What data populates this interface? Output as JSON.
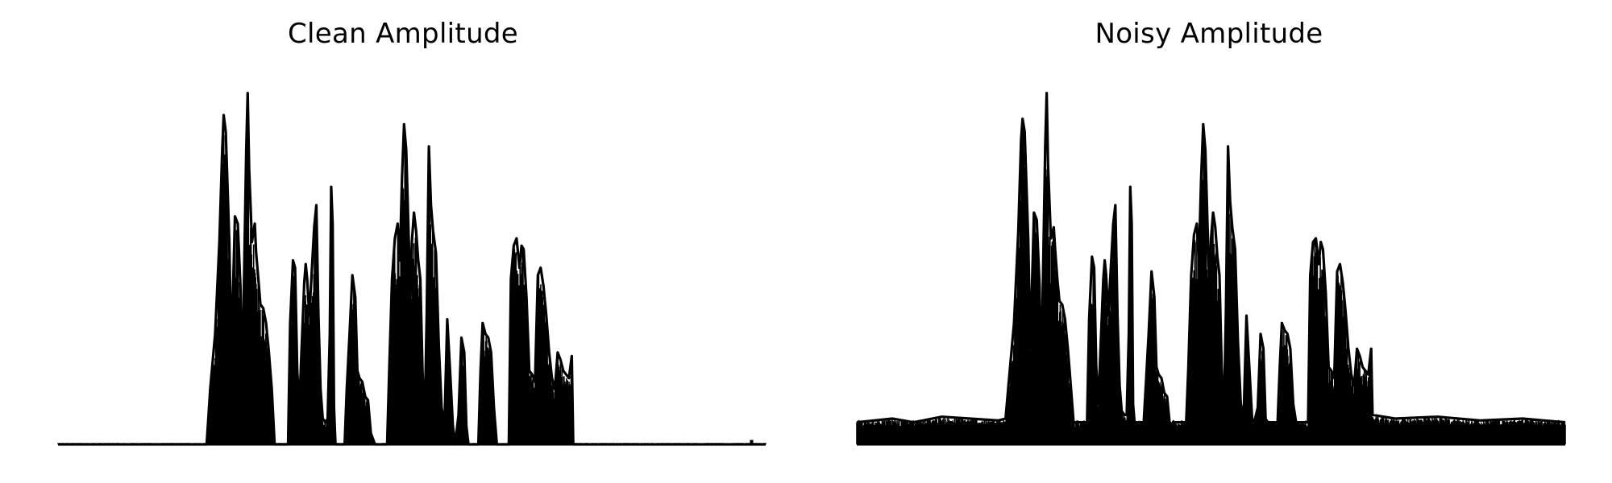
{
  "chart_data": [
    {
      "type": "area",
      "title": "Clean Amplitude",
      "xlabel": "",
      "ylabel": "",
      "axes_visible": false,
      "grid": false,
      "color": "#000000",
      "xlim": [
        0,
        1
      ],
      "ylim": [
        0,
        1
      ],
      "noise_floor": 0.0,
      "tail_blip_at": 0.98,
      "envelope": [
        [
          0.0,
          0.0
        ],
        [
          0.21,
          0.0
        ],
        [
          0.215,
          0.15
        ],
        [
          0.222,
          0.3
        ],
        [
          0.228,
          0.55
        ],
        [
          0.232,
          0.8
        ],
        [
          0.234,
          0.895
        ],
        [
          0.237,
          0.85
        ],
        [
          0.242,
          0.55
        ],
        [
          0.245,
          0.25
        ],
        [
          0.25,
          0.62
        ],
        [
          0.254,
          0.6
        ],
        [
          0.258,
          0.42
        ],
        [
          0.26,
          0.15
        ],
        [
          0.262,
          0.35
        ],
        [
          0.266,
          0.8
        ],
        [
          0.268,
          0.955
        ],
        [
          0.27,
          0.75
        ],
        [
          0.274,
          0.55
        ],
        [
          0.278,
          0.6
        ],
        [
          0.28,
          0.52
        ],
        [
          0.283,
          0.45
        ],
        [
          0.286,
          0.38
        ],
        [
          0.29,
          0.37
        ],
        [
          0.294,
          0.33
        ],
        [
          0.298,
          0.25
        ],
        [
          0.302,
          0.15
        ],
        [
          0.306,
          0.0
        ],
        [
          0.325,
          0.0
        ],
        [
          0.328,
          0.33
        ],
        [
          0.332,
          0.5
        ],
        [
          0.335,
          0.48
        ],
        [
          0.338,
          0.2
        ],
        [
          0.341,
          0.1
        ],
        [
          0.344,
          0.25
        ],
        [
          0.348,
          0.44
        ],
        [
          0.35,
          0.49
        ],
        [
          0.352,
          0.45
        ],
        [
          0.355,
          0.35
        ],
        [
          0.358,
          0.45
        ],
        [
          0.362,
          0.59
        ],
        [
          0.365,
          0.65
        ],
        [
          0.368,
          0.35
        ],
        [
          0.371,
          0.15
        ],
        [
          0.374,
          0.07
        ],
        [
          0.378,
          0.06
        ],
        [
          0.381,
          0.07
        ],
        [
          0.384,
          0.3
        ],
        [
          0.386,
          0.7
        ],
        [
          0.388,
          0.6
        ],
        [
          0.39,
          0.1
        ],
        [
          0.392,
          0.0
        ],
        [
          0.405,
          0.0
        ],
        [
          0.408,
          0.15
        ],
        [
          0.412,
          0.3
        ],
        [
          0.416,
          0.46
        ],
        [
          0.42,
          0.4
        ],
        [
          0.423,
          0.2
        ],
        [
          0.426,
          0.18
        ],
        [
          0.43,
          0.17
        ],
        [
          0.434,
          0.13
        ],
        [
          0.438,
          0.12
        ],
        [
          0.442,
          0.03
        ],
        [
          0.448,
          0.0
        ],
        [
          0.465,
          0.0
        ],
        [
          0.468,
          0.2
        ],
        [
          0.472,
          0.45
        ],
        [
          0.476,
          0.56
        ],
        [
          0.48,
          0.6
        ],
        [
          0.483,
          0.5
        ],
        [
          0.486,
          0.72
        ],
        [
          0.489,
          0.87
        ],
        [
          0.492,
          0.8
        ],
        [
          0.495,
          0.6
        ],
        [
          0.498,
          0.4
        ],
        [
          0.5,
          0.55
        ],
        [
          0.503,
          0.63
        ],
        [
          0.506,
          0.58
        ],
        [
          0.509,
          0.5
        ],
        [
          0.512,
          0.45
        ],
        [
          0.515,
          0.2
        ],
        [
          0.518,
          0.05
        ],
        [
          0.521,
          0.35
        ],
        [
          0.524,
          0.81
        ],
        [
          0.527,
          0.65
        ],
        [
          0.53,
          0.58
        ],
        [
          0.534,
          0.52
        ],
        [
          0.538,
          0.27
        ],
        [
          0.542,
          0.1
        ],
        [
          0.546,
          0.05
        ],
        [
          0.55,
          0.34
        ],
        [
          0.554,
          0.2
        ],
        [
          0.558,
          0.05
        ],
        [
          0.561,
          0.0
        ],
        [
          0.566,
          0.08
        ],
        [
          0.57,
          0.29
        ],
        [
          0.574,
          0.25
        ],
        [
          0.577,
          0.05
        ],
        [
          0.58,
          0.0
        ],
        [
          0.594,
          0.0
        ],
        [
          0.597,
          0.2
        ],
        [
          0.6,
          0.33
        ],
        [
          0.604,
          0.3
        ],
        [
          0.608,
          0.29
        ],
        [
          0.612,
          0.25
        ],
        [
          0.616,
          0.1
        ],
        [
          0.62,
          0.0
        ],
        [
          0.637,
          0.0
        ],
        [
          0.64,
          0.45
        ],
        [
          0.644,
          0.54
        ],
        [
          0.648,
          0.56
        ],
        [
          0.652,
          0.48
        ],
        [
          0.655,
          0.54
        ],
        [
          0.658,
          0.53
        ],
        [
          0.662,
          0.4
        ],
        [
          0.666,
          0.2
        ],
        [
          0.67,
          0.19
        ],
        [
          0.674,
          0.17
        ],
        [
          0.678,
          0.46
        ],
        [
          0.682,
          0.48
        ],
        [
          0.686,
          0.43
        ],
        [
          0.69,
          0.35
        ],
        [
          0.694,
          0.25
        ],
        [
          0.698,
          0.18
        ],
        [
          0.702,
          0.15
        ],
        [
          0.706,
          0.25
        ],
        [
          0.71,
          0.23
        ],
        [
          0.714,
          0.2
        ],
        [
          0.718,
          0.19
        ],
        [
          0.722,
          0.18
        ],
        [
          0.726,
          0.24
        ],
        [
          0.728,
          0.0
        ],
        [
          0.8,
          0.0
        ],
        [
          1.0,
          0.0
        ]
      ]
    },
    {
      "type": "area",
      "title": "Noisy Amplitude",
      "xlabel": "",
      "ylabel": "",
      "axes_visible": false,
      "grid": false,
      "color": "#000000",
      "xlim": [
        0,
        1
      ],
      "ylim": [
        0,
        1
      ],
      "noise_floor": 0.055,
      "envelope": [
        [
          0.0,
          0.06
        ],
        [
          0.05,
          0.07
        ],
        [
          0.08,
          0.06
        ],
        [
          0.12,
          0.075
        ],
        [
          0.16,
          0.07
        ],
        [
          0.2,
          0.065
        ],
        [
          0.21,
          0.07
        ],
        [
          0.215,
          0.18
        ],
        [
          0.222,
          0.33
        ],
        [
          0.228,
          0.58
        ],
        [
          0.232,
          0.83
        ],
        [
          0.234,
          0.885
        ],
        [
          0.237,
          0.85
        ],
        [
          0.242,
          0.56
        ],
        [
          0.245,
          0.26
        ],
        [
          0.25,
          0.63
        ],
        [
          0.254,
          0.61
        ],
        [
          0.258,
          0.43
        ],
        [
          0.26,
          0.16
        ],
        [
          0.262,
          0.36
        ],
        [
          0.266,
          0.81
        ],
        [
          0.268,
          0.955
        ],
        [
          0.27,
          0.76
        ],
        [
          0.274,
          0.56
        ],
        [
          0.278,
          0.59
        ],
        [
          0.28,
          0.53
        ],
        [
          0.283,
          0.45
        ],
        [
          0.286,
          0.39
        ],
        [
          0.29,
          0.38
        ],
        [
          0.294,
          0.34
        ],
        [
          0.298,
          0.26
        ],
        [
          0.302,
          0.16
        ],
        [
          0.306,
          0.06
        ],
        [
          0.325,
          0.06
        ],
        [
          0.328,
          0.34
        ],
        [
          0.332,
          0.51
        ],
        [
          0.335,
          0.48
        ],
        [
          0.338,
          0.21
        ],
        [
          0.341,
          0.11
        ],
        [
          0.344,
          0.26
        ],
        [
          0.348,
          0.45
        ],
        [
          0.35,
          0.5
        ],
        [
          0.352,
          0.46
        ],
        [
          0.355,
          0.35
        ],
        [
          0.358,
          0.46
        ],
        [
          0.362,
          0.6
        ],
        [
          0.365,
          0.65
        ],
        [
          0.368,
          0.35
        ],
        [
          0.371,
          0.16
        ],
        [
          0.374,
          0.09
        ],
        [
          0.378,
          0.08
        ],
        [
          0.381,
          0.08
        ],
        [
          0.384,
          0.3
        ],
        [
          0.386,
          0.7
        ],
        [
          0.388,
          0.6
        ],
        [
          0.39,
          0.11
        ],
        [
          0.392,
          0.06
        ],
        [
          0.405,
          0.06
        ],
        [
          0.408,
          0.16
        ],
        [
          0.412,
          0.3
        ],
        [
          0.416,
          0.47
        ],
        [
          0.42,
          0.4
        ],
        [
          0.423,
          0.21
        ],
        [
          0.426,
          0.19
        ],
        [
          0.43,
          0.18
        ],
        [
          0.434,
          0.14
        ],
        [
          0.438,
          0.13
        ],
        [
          0.442,
          0.05
        ],
        [
          0.448,
          0.06
        ],
        [
          0.465,
          0.06
        ],
        [
          0.468,
          0.21
        ],
        [
          0.472,
          0.46
        ],
        [
          0.476,
          0.57
        ],
        [
          0.48,
          0.6
        ],
        [
          0.483,
          0.51
        ],
        [
          0.486,
          0.72
        ],
        [
          0.489,
          0.87
        ],
        [
          0.492,
          0.8
        ],
        [
          0.495,
          0.6
        ],
        [
          0.498,
          0.41
        ],
        [
          0.5,
          0.56
        ],
        [
          0.503,
          0.63
        ],
        [
          0.506,
          0.59
        ],
        [
          0.509,
          0.51
        ],
        [
          0.512,
          0.46
        ],
        [
          0.515,
          0.21
        ],
        [
          0.518,
          0.07
        ],
        [
          0.521,
          0.36
        ],
        [
          0.524,
          0.81
        ],
        [
          0.527,
          0.66
        ],
        [
          0.53,
          0.59
        ],
        [
          0.534,
          0.53
        ],
        [
          0.538,
          0.28
        ],
        [
          0.542,
          0.11
        ],
        [
          0.546,
          0.07
        ],
        [
          0.55,
          0.35
        ],
        [
          0.554,
          0.21
        ],
        [
          0.558,
          0.07
        ],
        [
          0.561,
          0.06
        ],
        [
          0.566,
          0.1
        ],
        [
          0.57,
          0.3
        ],
        [
          0.574,
          0.26
        ],
        [
          0.577,
          0.07
        ],
        [
          0.58,
          0.06
        ],
        [
          0.594,
          0.06
        ],
        [
          0.597,
          0.21
        ],
        [
          0.6,
          0.33
        ],
        [
          0.604,
          0.31
        ],
        [
          0.608,
          0.3
        ],
        [
          0.612,
          0.26
        ],
        [
          0.616,
          0.11
        ],
        [
          0.62,
          0.06
        ],
        [
          0.637,
          0.06
        ],
        [
          0.64,
          0.46
        ],
        [
          0.644,
          0.55
        ],
        [
          0.648,
          0.56
        ],
        [
          0.652,
          0.49
        ],
        [
          0.655,
          0.55
        ],
        [
          0.658,
          0.53
        ],
        [
          0.662,
          0.41
        ],
        [
          0.666,
          0.21
        ],
        [
          0.67,
          0.2
        ],
        [
          0.674,
          0.18
        ],
        [
          0.678,
          0.47
        ],
        [
          0.682,
          0.49
        ],
        [
          0.686,
          0.44
        ],
        [
          0.69,
          0.36
        ],
        [
          0.694,
          0.26
        ],
        [
          0.698,
          0.19
        ],
        [
          0.702,
          0.16
        ],
        [
          0.706,
          0.26
        ],
        [
          0.71,
          0.24
        ],
        [
          0.714,
          0.21
        ],
        [
          0.718,
          0.2
        ],
        [
          0.722,
          0.19
        ],
        [
          0.726,
          0.26
        ],
        [
          0.728,
          0.08
        ],
        [
          0.76,
          0.07
        ],
        [
          0.82,
          0.075
        ],
        [
          0.88,
          0.065
        ],
        [
          0.94,
          0.07
        ],
        [
          0.97,
          0.065
        ],
        [
          1.0,
          0.06
        ]
      ]
    }
  ]
}
